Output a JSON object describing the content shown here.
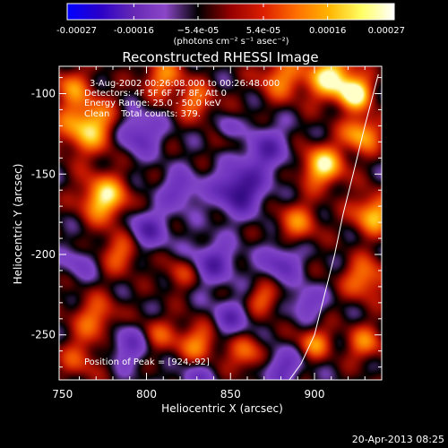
{
  "chart_data": {
    "type": "heatmap",
    "title": "Reconstructed RHESSI Image",
    "xlabel": "Heliocentric X (arcsec)",
    "ylabel": "Heliocentric Y (arcsec)",
    "xlim": [
      748,
      940
    ],
    "ylim": [
      -278,
      -83
    ],
    "x_ticks": [
      750,
      800,
      850,
      900
    ],
    "y_ticks": [
      -100,
      -150,
      -200,
      -250
    ],
    "colorbar": {
      "range": [
        -0.00027,
        0.00027
      ],
      "tick_values": [
        -0.00027,
        -0.00016,
        -5.4e-05,
        5.4e-05,
        0.00016,
        0.00027
      ],
      "tick_labels": [
        "-0.00027",
        "-0.00016",
        "−5.4e-05",
        "5.4e-05",
        "0.00016",
        "0.00027"
      ],
      "units": "(photons cm⁻² s⁻¹ asec⁻²)",
      "colors": [
        "#0000ff",
        "#2a00c8",
        "#6428b4",
        "#8c46c8",
        "#000000",
        "#960000",
        "#dc1e00",
        "#ff6e00",
        "#ffb400",
        "#ffff64",
        "#ffffff"
      ]
    },
    "annotations": {
      "time": "3-Aug-2002 00:26:08.000 to 00:26:48.000",
      "detectors": "Detectors: 4F 5F 6F 7F 8F, Att 0",
      "energy": "Energy Range: 25.0 - 50.0 keV",
      "clean": "Clean    Total counts: 379.",
      "peak": "Position of Peak = [924,-92]"
    },
    "limb_points": [
      [
        938,
        -88
      ],
      [
        930,
        -120
      ],
      [
        923,
        -150
      ],
      [
        917,
        -175
      ],
      [
        912,
        -200
      ],
      [
        906,
        -225
      ],
      [
        900,
        -250
      ],
      [
        892,
        -268
      ],
      [
        885,
        -278
      ]
    ],
    "sources": [
      {
        "x": 765,
        "y": -120,
        "s": 12,
        "a": 0.9
      },
      {
        "x": 775,
        "y": -165,
        "s": 10,
        "a": 0.95
      },
      {
        "x": 785,
        "y": -198,
        "s": 9,
        "a": 0.55
      },
      {
        "x": 770,
        "y": -240,
        "s": 10,
        "a": 0.55
      },
      {
        "x": 755,
        "y": -95,
        "s": 8,
        "a": 0.5
      },
      {
        "x": 760,
        "y": -265,
        "s": 9,
        "a": 0.4
      },
      {
        "x": 810,
        "y": -90,
        "s": 9,
        "a": 0.6
      },
      {
        "x": 830,
        "y": -105,
        "s": 8,
        "a": 0.55
      },
      {
        "x": 850,
        "y": -125,
        "s": 8,
        "a": 0.45
      },
      {
        "x": 880,
        "y": -90,
        "s": 10,
        "a": 0.6
      },
      {
        "x": 910,
        "y": -90,
        "s": 10,
        "a": 1.0
      },
      {
        "x": 925,
        "y": -100,
        "s": 7,
        "a": 0.95
      },
      {
        "x": 928,
        "y": -125,
        "s": 8,
        "a": 0.8
      },
      {
        "x": 905,
        "y": -145,
        "s": 9,
        "a": 0.95
      },
      {
        "x": 935,
        "y": -175,
        "s": 9,
        "a": 0.8
      },
      {
        "x": 890,
        "y": -180,
        "s": 9,
        "a": 0.55
      },
      {
        "x": 930,
        "y": -215,
        "s": 9,
        "a": 0.65
      },
      {
        "x": 830,
        "y": -255,
        "s": 9,
        "a": 0.6
      },
      {
        "x": 860,
        "y": -262,
        "s": 8,
        "a": 0.55
      },
      {
        "x": 870,
        "y": -228,
        "s": 7,
        "a": 0.5
      },
      {
        "x": 805,
        "y": -250,
        "s": 8,
        "a": 0.45
      },
      {
        "x": 900,
        "y": -255,
        "s": 7,
        "a": 0.6
      },
      {
        "x": 930,
        "y": -255,
        "s": 8,
        "a": 0.55
      },
      {
        "x": 820,
        "y": -212,
        "s": 7,
        "a": 0.4
      },
      {
        "x": 855,
        "y": -160,
        "s": 10,
        "a": -0.9
      },
      {
        "x": 848,
        "y": -122,
        "s": 6,
        "a": -0.7
      },
      {
        "x": 795,
        "y": -125,
        "s": 9,
        "a": -0.6
      },
      {
        "x": 800,
        "y": -185,
        "s": 9,
        "a": -0.6
      },
      {
        "x": 840,
        "y": -205,
        "s": 9,
        "a": -0.6
      },
      {
        "x": 880,
        "y": -205,
        "s": 8,
        "a": -0.55
      },
      {
        "x": 870,
        "y": -135,
        "s": 10,
        "a": -0.6
      },
      {
        "x": 820,
        "y": -160,
        "s": 8,
        "a": -0.5
      },
      {
        "x": 790,
        "y": -255,
        "s": 9,
        "a": -0.55
      },
      {
        "x": 850,
        "y": -240,
        "s": 8,
        "a": -0.5
      },
      {
        "x": 880,
        "y": -270,
        "s": 8,
        "a": -0.55
      },
      {
        "x": 895,
        "y": -230,
        "s": 7,
        "a": -0.45
      },
      {
        "x": 760,
        "y": -205,
        "s": 7,
        "a": -0.35
      },
      {
        "x": 830,
        "y": -278,
        "s": 8,
        "a": -0.4
      }
    ]
  },
  "footer": {
    "timestamp": "20-Apr-2013 08:25"
  }
}
